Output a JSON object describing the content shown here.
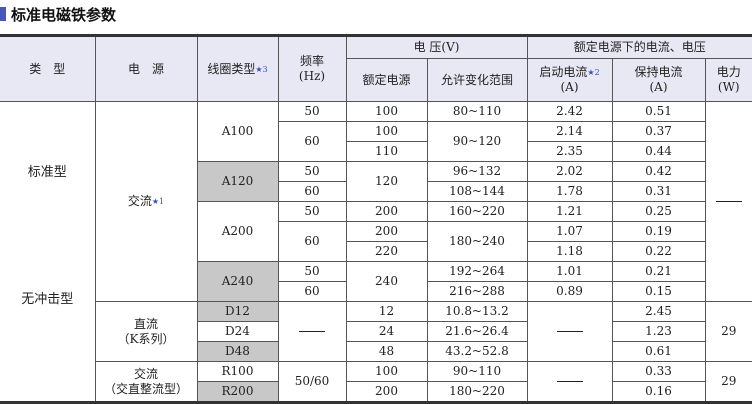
{
  "title": "标准电磁铁参数",
  "header": {
    "type": "类　型",
    "power": "电　源",
    "coil": "线圈类型",
    "coil_star": "★3",
    "freq": "频率",
    "freq_unit": "(Hz)",
    "voltage": "电 压(V)",
    "rated": "额定电源",
    "range": "允许变化范围",
    "at_rated": "额定电源下的电流、电压",
    "start": "启动电流",
    "start_star": "★2",
    "start_unit": "(A)",
    "hold": "保持电流",
    "hold_unit": "(A)",
    "watt": "电力",
    "watt_unit": "(W)"
  },
  "types": [
    "标准型",
    "无冲击型"
  ],
  "powers": {
    "ac": "交流",
    "ac_star": "★1",
    "dc": "直流",
    "dc_sub": "（K系列）",
    "rect": "交流",
    "rect_sub": "（交直整流型）"
  },
  "dash": "——",
  "rows": [
    {
      "coil": "A100",
      "freq": "50",
      "rated": "100",
      "range": "80~110",
      "start": "2.42",
      "hold": "0.51"
    },
    {
      "freq": "60",
      "rated": "100",
      "range": "90~120",
      "start": "2.14",
      "hold": "0.37"
    },
    {
      "rated": "110",
      "start": "2.35",
      "hold": "0.44"
    },
    {
      "coil": "A120",
      "freq": "50",
      "rated": "120",
      "range": "96~132",
      "start": "2.02",
      "hold": "0.42"
    },
    {
      "freq": "60",
      "range": "108~144",
      "start": "1.78",
      "hold": "0.31"
    },
    {
      "coil": "A200",
      "freq": "50",
      "rated": "200",
      "range": "160~220",
      "start": "1.21",
      "hold": "0.25"
    },
    {
      "freq": "60",
      "rated": "200",
      "range": "180~240",
      "start": "1.07",
      "hold": "0.19"
    },
    {
      "rated": "220",
      "start": "1.18",
      "hold": "0.22"
    },
    {
      "coil": "A240",
      "freq": "50",
      "rated": "240",
      "range": "192~264",
      "start": "1.01",
      "hold": "0.21"
    },
    {
      "freq": "60",
      "range": "216~288",
      "start": "0.89",
      "hold": "0.15"
    },
    {
      "coil": "D12",
      "rated": "12",
      "range": "10.8~13.2",
      "hold": "2.45",
      "watt": "29"
    },
    {
      "coil": "D24",
      "rated": "24",
      "range": "21.6~26.4",
      "hold": "1.23"
    },
    {
      "coil": "D48",
      "rated": "48",
      "range": "43.2~52.8",
      "hold": "0.61"
    },
    {
      "coil": "R100",
      "freq": "50/60",
      "rated": "100",
      "range": "90~110",
      "hold": "0.33",
      "watt": "29"
    },
    {
      "coil": "R200",
      "rated": "200",
      "range": "180~220",
      "hold": "0.16"
    }
  ]
}
